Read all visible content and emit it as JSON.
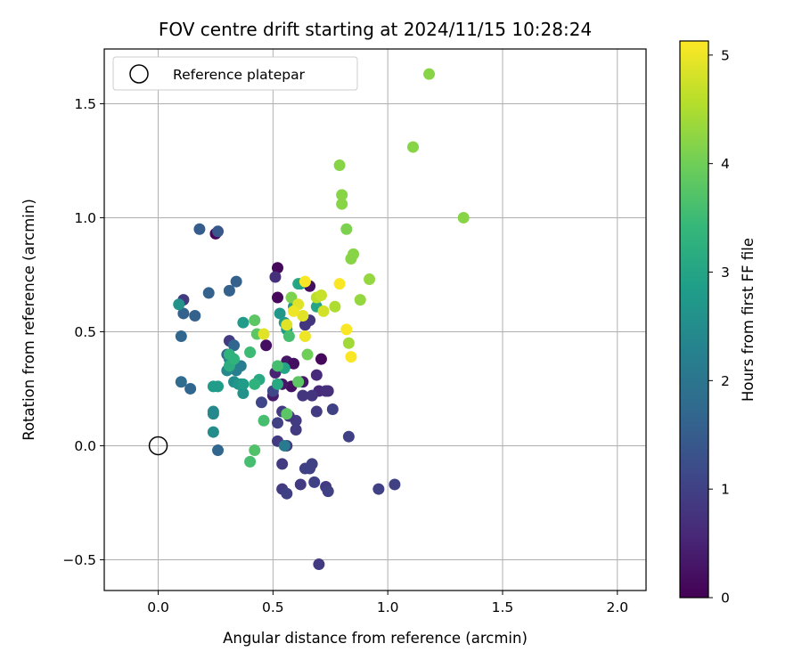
{
  "chart_data": {
    "type": "scatter",
    "title": "FOV centre drift starting at 2024/11/15 10:28:24",
    "xlabel": "Angular distance from reference (arcmin)",
    "ylabel": "Rotation from reference (arcmin)",
    "xlim": [
      -0.235,
      2.125
    ],
    "ylim": [
      -0.635,
      1.74
    ],
    "x_ticks": [
      0.0,
      0.5,
      1.0,
      1.5,
      2.0
    ],
    "x_tick_labels": [
      "0.0",
      "0.5",
      "1.0",
      "1.5",
      "2.0"
    ],
    "y_ticks": [
      -0.5,
      0.0,
      0.5,
      1.0,
      1.5
    ],
    "y_tick_labels": [
      "−0.5",
      "0.0",
      "0.5",
      "1.0",
      "1.5"
    ],
    "grid": true,
    "legend": {
      "placement": "top-left",
      "entries": [
        {
          "label": "Reference platepar",
          "marker": "open-circle"
        }
      ]
    },
    "reference_point": {
      "x": 0.0,
      "y": 0.0
    },
    "colorbar": {
      "label": "Hours from first FF file",
      "min": 0,
      "max": 5.13,
      "ticks": [
        0,
        1,
        2,
        3,
        4,
        5
      ],
      "tick_labels": [
        "0",
        "1",
        "2",
        "3",
        "4",
        "5"
      ],
      "colormap": "viridis"
    },
    "colormap_stops": [
      "#440154",
      "#482878",
      "#3e4989",
      "#31688e",
      "#26828e",
      "#1f9e89",
      "#35b779",
      "#6ece58",
      "#b5de2b",
      "#fde725"
    ],
    "points": [
      [
        0.25,
        0.93,
        0.1
      ],
      [
        0.52,
        0.78,
        0.1
      ],
      [
        0.52,
        0.65,
        0.1
      ],
      [
        0.66,
        0.7,
        0.2
      ],
      [
        0.71,
        0.38,
        0.1
      ],
      [
        0.47,
        0.44,
        0.2
      ],
      [
        0.56,
        0.37,
        0.3
      ],
      [
        0.58,
        0.26,
        0.2
      ],
      [
        0.59,
        0.36,
        0.2
      ],
      [
        0.63,
        0.28,
        0.3
      ],
      [
        0.54,
        0.27,
        0.3
      ],
      [
        0.5,
        0.22,
        0.4
      ],
      [
        0.51,
        0.32,
        0.5
      ],
      [
        0.69,
        0.31,
        0.6
      ],
      [
        0.7,
        0.24,
        0.6
      ],
      [
        0.74,
        0.24,
        0.7
      ],
      [
        0.73,
        0.24,
        0.7
      ],
      [
        0.67,
        0.22,
        0.8
      ],
      [
        0.63,
        0.22,
        0.8
      ],
      [
        0.6,
        0.11,
        0.9
      ],
      [
        0.69,
        0.15,
        0.9
      ],
      [
        0.54,
        0.15,
        0.9
      ],
      [
        0.57,
        0.13,
        0.8
      ],
      [
        0.6,
        0.07,
        0.9
      ],
      [
        0.76,
        0.16,
        1.0
      ],
      [
        0.83,
        0.04,
        1.0
      ],
      [
        0.52,
        0.02,
        0.9
      ],
      [
        0.56,
        0.0,
        0.9
      ],
      [
        0.54,
        -0.08,
        0.9
      ],
      [
        0.64,
        -0.1,
        1.0
      ],
      [
        0.67,
        -0.08,
        1.0
      ],
      [
        0.66,
        -0.1,
        1.0
      ],
      [
        0.62,
        -0.17,
        0.9
      ],
      [
        0.68,
        -0.16,
        1.0
      ],
      [
        0.54,
        -0.19,
        0.9
      ],
      [
        0.56,
        -0.21,
        1.0
      ],
      [
        0.73,
        -0.18,
        0.9
      ],
      [
        0.74,
        -0.2,
        1.0
      ],
      [
        0.96,
        -0.19,
        1.0
      ],
      [
        1.03,
        -0.17,
        1.0
      ],
      [
        0.7,
        -0.52,
        0.9
      ],
      [
        0.51,
        0.74,
        0.7
      ],
      [
        0.66,
        0.55,
        0.8
      ],
      [
        0.64,
        0.53,
        0.8
      ],
      [
        0.52,
        0.1,
        1.0
      ],
      [
        0.11,
        0.64,
        0.9
      ],
      [
        0.31,
        0.46,
        0.9
      ],
      [
        0.45,
        0.19,
        1.1
      ],
      [
        0.5,
        0.24,
        1.1
      ],
      [
        0.18,
        0.95,
        1.5
      ],
      [
        0.26,
        0.94,
        1.4
      ],
      [
        0.34,
        0.72,
        1.6
      ],
      [
        0.31,
        0.68,
        1.6
      ],
      [
        0.22,
        0.67,
        1.6
      ],
      [
        0.11,
        0.58,
        1.6
      ],
      [
        0.16,
        0.57,
        1.6
      ],
      [
        0.1,
        0.48,
        1.7
      ],
      [
        0.33,
        0.44,
        1.7
      ],
      [
        0.3,
        0.4,
        1.8
      ],
      [
        0.1,
        0.28,
        1.8
      ],
      [
        0.14,
        0.25,
        1.7
      ],
      [
        0.26,
        -0.02,
        1.7
      ],
      [
        0.24,
        0.15,
        2.4
      ],
      [
        0.24,
        0.14,
        2.4
      ],
      [
        0.24,
        0.06,
        2.5
      ],
      [
        0.55,
        0.0,
        2.1
      ],
      [
        0.36,
        0.35,
        2.2
      ],
      [
        0.34,
        0.33,
        2.2
      ],
      [
        0.3,
        0.33,
        2.4
      ],
      [
        0.31,
        0.38,
        2.4
      ],
      [
        0.33,
        0.28,
        2.5
      ],
      [
        0.36,
        0.27,
        2.5
      ],
      [
        0.37,
        0.23,
        2.6
      ],
      [
        0.26,
        0.26,
        2.8
      ],
      [
        0.24,
        0.26,
        2.8
      ],
      [
        0.35,
        0.27,
        2.7
      ],
      [
        0.37,
        0.27,
        2.8
      ],
      [
        0.09,
        0.62,
        2.6
      ],
      [
        0.37,
        0.54,
        2.8
      ],
      [
        0.53,
        0.58,
        2.7
      ],
      [
        0.55,
        0.54,
        2.8
      ],
      [
        0.56,
        0.51,
        2.8
      ],
      [
        0.59,
        0.61,
        2.9
      ],
      [
        0.61,
        0.71,
        3.1
      ],
      [
        0.62,
        0.71,
        3.0
      ],
      [
        0.69,
        0.61,
        3.0
      ],
      [
        0.55,
        0.34,
        3.0
      ],
      [
        0.52,
        0.27,
        3.1
      ],
      [
        0.44,
        0.29,
        3.1
      ],
      [
        0.42,
        0.27,
        3.3
      ],
      [
        0.31,
        0.35,
        3.2
      ],
      [
        0.33,
        0.38,
        3.3
      ],
      [
        0.31,
        0.4,
        3.3
      ],
      [
        0.4,
        0.41,
        3.5
      ],
      [
        0.46,
        0.11,
        3.6
      ],
      [
        0.4,
        -0.07,
        3.6
      ],
      [
        0.42,
        -0.02,
        3.7
      ],
      [
        0.52,
        0.35,
        3.6
      ],
      [
        0.57,
        0.48,
        3.6
      ],
      [
        0.43,
        0.49,
        3.8
      ],
      [
        0.42,
        0.55,
        3.8
      ],
      [
        0.61,
        0.28,
        3.8
      ],
      [
        0.56,
        0.14,
        3.8
      ],
      [
        0.65,
        0.4,
        4.0
      ],
      [
        0.58,
        0.65,
        4.1
      ],
      [
        0.84,
        0.82,
        4.2
      ],
      [
        0.85,
        0.84,
        4.2
      ],
      [
        0.82,
        0.95,
        4.1
      ],
      [
        0.8,
        1.06,
        4.2
      ],
      [
        0.8,
        1.1,
        4.2
      ],
      [
        0.79,
        1.23,
        4.2
      ],
      [
        1.18,
        1.63,
        4.2
      ],
      [
        1.11,
        1.31,
        4.2
      ],
      [
        1.33,
        1.0,
        4.2
      ],
      [
        0.92,
        0.73,
        4.3
      ],
      [
        0.88,
        0.64,
        4.3
      ],
      [
        0.83,
        0.45,
        4.4
      ],
      [
        0.77,
        0.61,
        4.5
      ],
      [
        0.69,
        0.65,
        4.6
      ],
      [
        0.71,
        0.66,
        4.7
      ],
      [
        0.72,
        0.59,
        4.8
      ],
      [
        0.61,
        0.62,
        4.9
      ],
      [
        0.63,
        0.57,
        4.9
      ],
      [
        0.59,
        0.59,
        5.0
      ],
      [
        0.56,
        0.53,
        4.9
      ],
      [
        0.46,
        0.49,
        4.9
      ],
      [
        0.64,
        0.48,
        5.0
      ],
      [
        0.64,
        0.72,
        5.1
      ],
      [
        0.79,
        0.71,
        5.1
      ],
      [
        0.82,
        0.51,
        5.1
      ],
      [
        0.84,
        0.39,
        5.1
      ]
    ]
  }
}
